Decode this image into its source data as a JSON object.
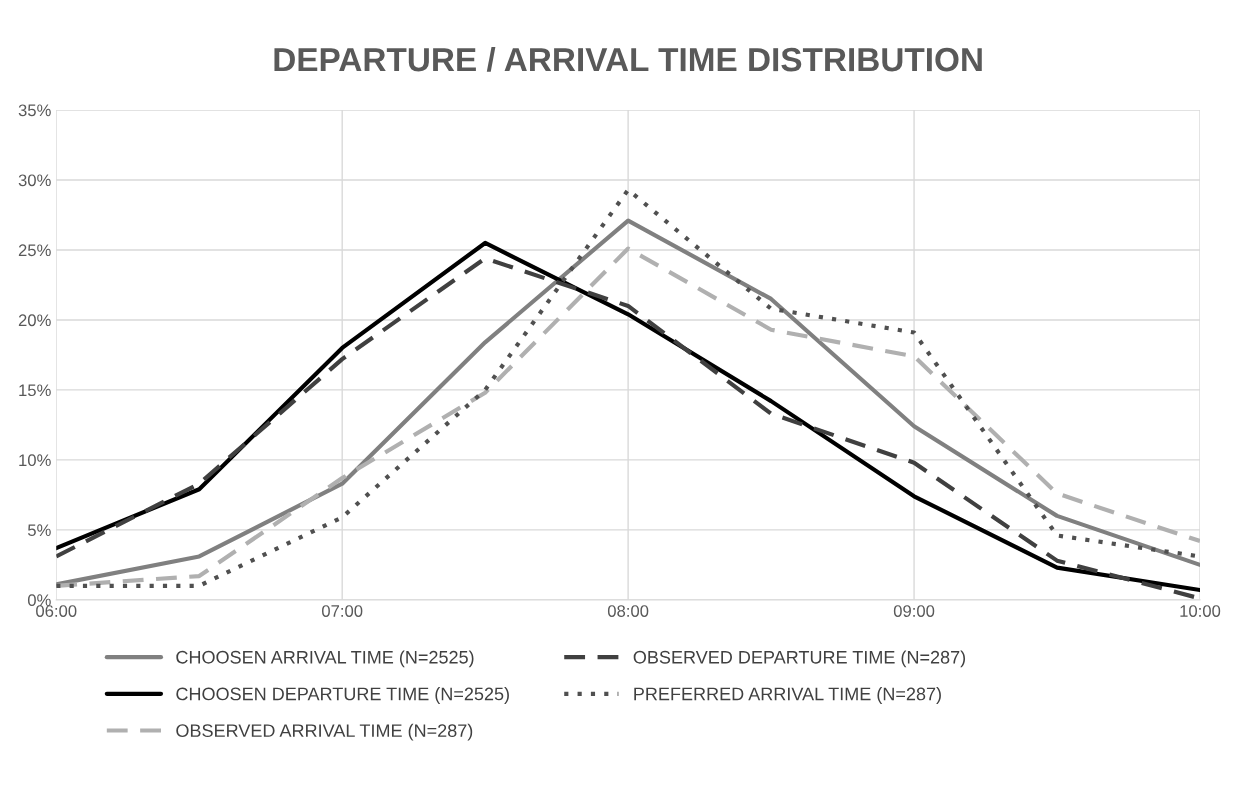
{
  "chart_data": {
    "type": "line",
    "title": "DEPARTURE / ARRIVAL TIME DISTRIBUTION",
    "x": [
      6,
      6.5,
      7,
      7.5,
      8,
      8.5,
      9,
      9.5,
      10
    ],
    "series": [
      {
        "name": "CHOOSEN ARRIVAL TIME (N=2525)",
        "color": "#808080",
        "line_style": "solid",
        "values": [
          1.1,
          3.1,
          8.3,
          18.4,
          27.1,
          21.5,
          12.4,
          6.0,
          2.5
        ]
      },
      {
        "name": "CHOOSEN DEPARTURE TIME (N=2525)",
        "color": "#000000",
        "line_style": "solid",
        "values": [
          3.7,
          7.9,
          18.0,
          25.5,
          20.4,
          14.2,
          7.4,
          2.3,
          0.7
        ]
      },
      {
        "name": "OBSERVED ARRIVAL TIME (N=287)",
        "color": "#b0b0b0",
        "line_style": "dashed",
        "values": [
          1.0,
          1.7,
          8.7,
          14.8,
          25.1,
          19.3,
          17.4,
          7.6,
          4.2
        ]
      },
      {
        "name": "OBSERVED DEPARTURE TIME (N=287)",
        "color": "#404040",
        "line_style": "dashed",
        "values": [
          3.1,
          8.3,
          17.2,
          24.4,
          21.0,
          13.3,
          9.8,
          2.8,
          0.1
        ]
      },
      {
        "name": "PREFERRED ARRIVAL TIME (N=287)",
        "color": "#505050",
        "line_style": "dotted",
        "values": [
          1.0,
          1.0,
          5.9,
          15.0,
          29.3,
          20.8,
          19.1,
          4.6,
          3.1
        ]
      }
    ],
    "xlim": [
      6,
      10
    ],
    "xticks": [
      {
        "value": 6,
        "label": "06:00"
      },
      {
        "value": 7,
        "label": "07:00"
      },
      {
        "value": 8,
        "label": "08:00"
      },
      {
        "value": 9,
        "label": "09:00"
      },
      {
        "value": 10,
        "label": "10:00"
      }
    ],
    "ylim": [
      0,
      35
    ],
    "yticks": [
      {
        "value": 0,
        "label": "0%"
      },
      {
        "value": 5,
        "label": "5%"
      },
      {
        "value": 10,
        "label": "10%"
      },
      {
        "value": 15,
        "label": "15%"
      },
      {
        "value": 20,
        "label": "20%"
      },
      {
        "value": 25,
        "label": "25%"
      },
      {
        "value": 30,
        "label": "30%"
      },
      {
        "value": 35,
        "label": "35%"
      }
    ],
    "grid": true,
    "legend": "bottom",
    "marker": "none"
  }
}
